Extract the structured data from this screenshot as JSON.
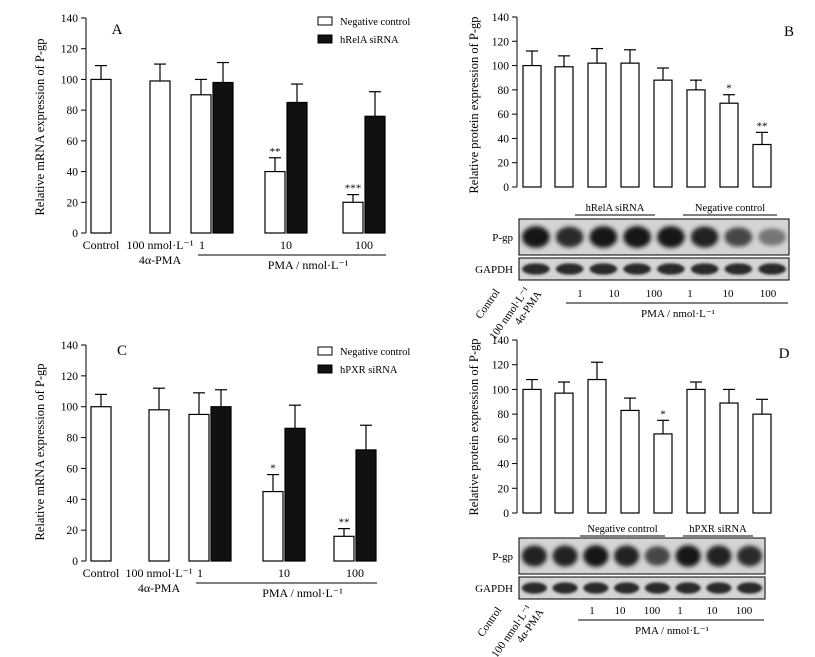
{
  "chart_data": [
    {
      "panel": "A",
      "type": "bar",
      "ylabel": "Relative mRNA expression of P-gp",
      "ylim": [
        0,
        140
      ],
      "yticks": [
        0,
        20,
        40,
        60,
        80,
        100,
        120,
        140
      ],
      "legend": {
        "position": "top-right",
        "series": [
          "Negative control",
          "hRelA siRNA"
        ]
      },
      "categories": [
        "Control",
        "100 nmol·L⁻¹",
        "1",
        "10",
        "100"
      ],
      "category_sublabels": [
        "",
        "4α-PMA",
        "",
        "",
        ""
      ],
      "group_label": "PMA / nmol·L⁻¹",
      "series": [
        {
          "name": "Negative control",
          "values": [
            100,
            99,
            90,
            40,
            20
          ],
          "errors": [
            9,
            11,
            10,
            9,
            5
          ],
          "significance": [
            "",
            "",
            "",
            "**",
            "***"
          ]
        },
        {
          "name": "hRelA siRNA",
          "values": [
            null,
            null,
            98,
            85,
            76
          ],
          "errors": [
            null,
            null,
            13,
            12,
            16
          ],
          "significance": [
            "",
            "",
            "",
            "",
            ""
          ]
        }
      ]
    },
    {
      "panel": "B",
      "type": "bar",
      "ylabel": "Relative protein expression of P-gp",
      "ylim": [
        0,
        140
      ],
      "yticks": [
        0,
        20,
        40,
        60,
        80,
        100,
        120,
        140
      ],
      "categories": [
        "Control",
        "100 nmol·L⁻¹",
        "1",
        "10",
        "100",
        "1",
        "10",
        "100"
      ],
      "values": [
        100,
        99,
        102,
        102,
        88,
        80,
        69,
        35
      ],
      "errors": [
        12,
        9,
        12,
        11,
        10,
        8,
        7,
        10
      ],
      "significance": [
        "",
        "",
        "",
        "",
        "",
        "",
        "*",
        "**"
      ],
      "siRNA_groups": [
        "hRelA siRNA",
        "Negative control"
      ],
      "blot_rows": [
        "P-gp",
        "GAPDH"
      ],
      "lane_labels": [
        "Control",
        "100 nmol·L⁻¹",
        "4α-PMA",
        "1",
        "10",
        "100",
        "1",
        "10",
        "100"
      ],
      "group_label": "PMA / nmol·L⁻¹"
    },
    {
      "panel": "C",
      "type": "bar",
      "ylabel": "Relative mRNA expression of P-gp",
      "ylim": [
        0,
        140
      ],
      "yticks": [
        0,
        20,
        40,
        60,
        80,
        100,
        120,
        140
      ],
      "legend": {
        "position": "top-right",
        "series": [
          "Negative control",
          "hPXR siRNA"
        ]
      },
      "categories": [
        "Control",
        "100 nmol·L⁻¹",
        "1",
        "10",
        "100"
      ],
      "category_sublabels": [
        "",
        "4α-PMA",
        "",
        "",
        ""
      ],
      "group_label": "PMA / nmol·L⁻¹",
      "series": [
        {
          "name": "Negative control",
          "values": [
            100,
            98,
            95,
            45,
            16
          ],
          "errors": [
            8,
            14,
            14,
            11,
            5
          ],
          "significance": [
            "",
            "",
            "",
            "*",
            "**"
          ]
        },
        {
          "name": "hPXR siRNA",
          "values": [
            null,
            null,
            100,
            86,
            72
          ],
          "errors": [
            null,
            null,
            11,
            15,
            16
          ],
          "significance": [
            "",
            "",
            "",
            "",
            ""
          ]
        }
      ]
    },
    {
      "panel": "D",
      "type": "bar",
      "ylabel": "Relative protein expression of P-gp",
      "ylim": [
        0,
        140
      ],
      "yticks": [
        0,
        20,
        40,
        60,
        80,
        100,
        120,
        140
      ],
      "categories": [
        "Control",
        "100 nmol·L⁻¹",
        "1",
        "10",
        "100",
        "1",
        "10",
        "100"
      ],
      "values": [
        100,
        97,
        108,
        83,
        64,
        100,
        89,
        80
      ],
      "errors": [
        8,
        9,
        14,
        10,
        11,
        6,
        11,
        12
      ],
      "significance": [
        "",
        "",
        "",
        "",
        "*",
        "",
        "",
        ""
      ],
      "siRNA_groups": [
        "Negative control",
        "hPXR siRNA"
      ],
      "blot_rows": [
        "P-gp",
        "GAPDH"
      ],
      "lane_labels": [
        "Control",
        "100 nmol·L⁻¹",
        "4α-PMA",
        "1",
        "10",
        "100",
        "1",
        "10",
        "100"
      ],
      "group_label": "PMA / nmol·L⁻¹"
    }
  ]
}
